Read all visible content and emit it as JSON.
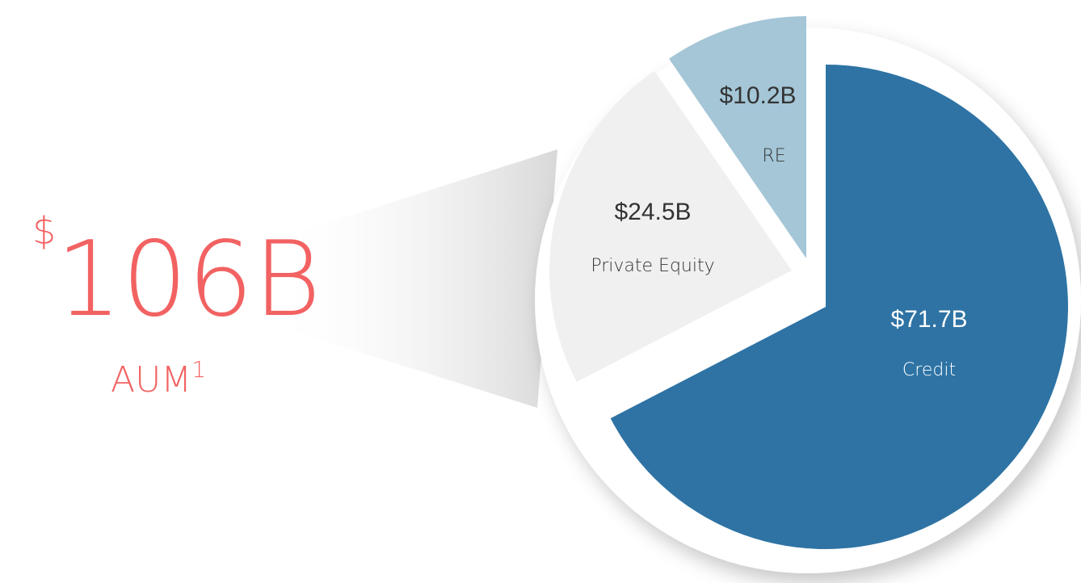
{
  "headline": {
    "currency": "$",
    "value": "106B",
    "label": "AUM",
    "footnote": "1"
  },
  "chart_data": {
    "type": "pie",
    "categories": [
      "Credit",
      "Private Equity",
      "RE"
    ],
    "values": [
      71.7,
      24.5,
      10.2
    ],
    "value_labels": [
      "$71.7B",
      "$24.5B",
      "$10.2B"
    ],
    "colors": [
      "#2e73a4",
      "#f0f0f0",
      "#a4c6d7"
    ]
  }
}
